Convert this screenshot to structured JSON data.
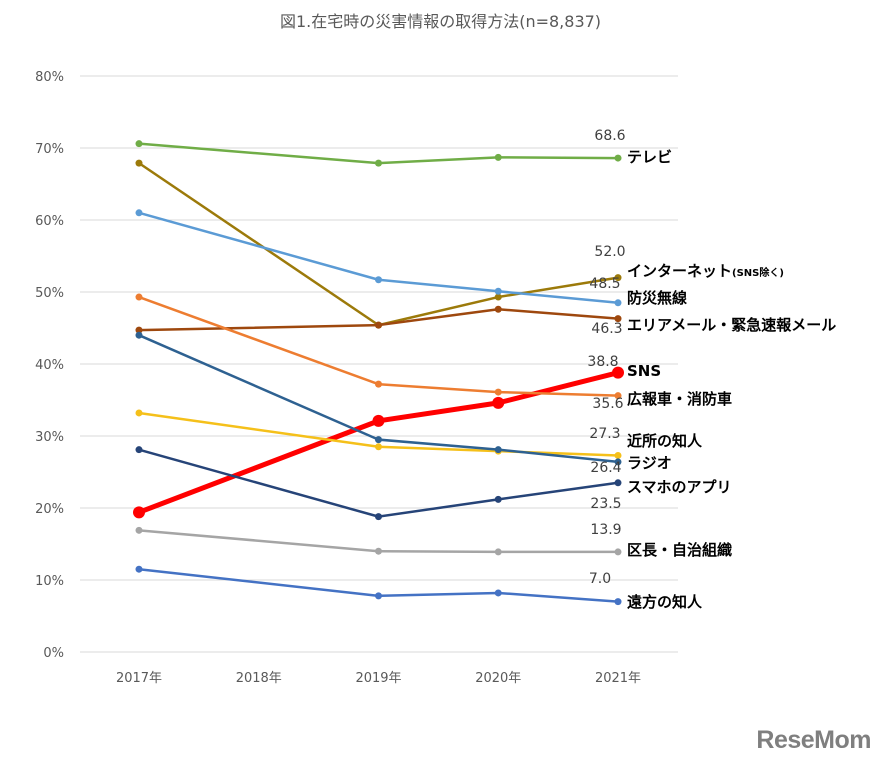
{
  "chart_data": {
    "type": "line",
    "title": "図1.在宅時の災害情報の取得方法(n=8,837)",
    "xlabel": "",
    "ylabel": "",
    "categories": [
      "2017年",
      "2018年",
      "2019年",
      "2020年",
      "2021年"
    ],
    "yticks": [
      "0%",
      "10%",
      "20%",
      "30%",
      "40%",
      "50%",
      "60%",
      "70%",
      "80%"
    ],
    "ylim": [
      0,
      80
    ],
    "grid": true,
    "legend": "direct labels at right end",
    "series": [
      {
        "name": "テレビ",
        "color": "#70AD47",
        "values": [
          70.6,
          null,
          67.9,
          68.7,
          68.6
        ],
        "end_label": "68.6"
      },
      {
        "name": "インターネット",
        "name_suffix": "(SNS除く)",
        "color": "#9C7A0A",
        "values": [
          67.9,
          null,
          45.4,
          49.3,
          52.0
        ],
        "end_label": "52.0"
      },
      {
        "name": "防災無線",
        "color": "#5B9BD5",
        "values": [
          61.0,
          null,
          51.7,
          50.1,
          48.5
        ],
        "end_label": "48.5"
      },
      {
        "name": "エリアメール・緊急速報メール",
        "color": "#9E480E",
        "values": [
          44.7,
          null,
          45.4,
          47.6,
          46.3
        ],
        "end_label": "46.3"
      },
      {
        "name": "SNS",
        "color": "#FF0000",
        "values": [
          19.4,
          null,
          32.1,
          34.6,
          38.8
        ],
        "end_label": "38.8",
        "bold": true
      },
      {
        "name": "広報車・消防車",
        "color": "#ED7D31",
        "values": [
          49.3,
          null,
          37.2,
          36.1,
          35.6
        ],
        "end_label": "35.6"
      },
      {
        "name": "近所の知人",
        "color": "#F5C01A",
        "values": [
          33.2,
          null,
          28.5,
          27.9,
          27.3
        ],
        "end_label": "27.3"
      },
      {
        "name": "ラジオ",
        "color": "#2E6191",
        "values": [
          44.0,
          null,
          29.5,
          28.1,
          26.4
        ],
        "end_label": "26.4"
      },
      {
        "name": "スマホのアプリ",
        "color": "#264478",
        "values": [
          28.1,
          null,
          18.8,
          21.2,
          23.5
        ],
        "end_label": "23.5"
      },
      {
        "name": "区長・自治組織",
        "color": "#A5A5A5",
        "values": [
          16.9,
          null,
          14.0,
          13.9,
          13.9
        ],
        "end_label": "13.9"
      },
      {
        "name": "遠方の知人",
        "color": "#4472C4",
        "values": [
          11.5,
          null,
          7.8,
          8.2,
          7.0
        ],
        "end_label": "7.0"
      }
    ]
  },
  "watermark": "ReseMom"
}
